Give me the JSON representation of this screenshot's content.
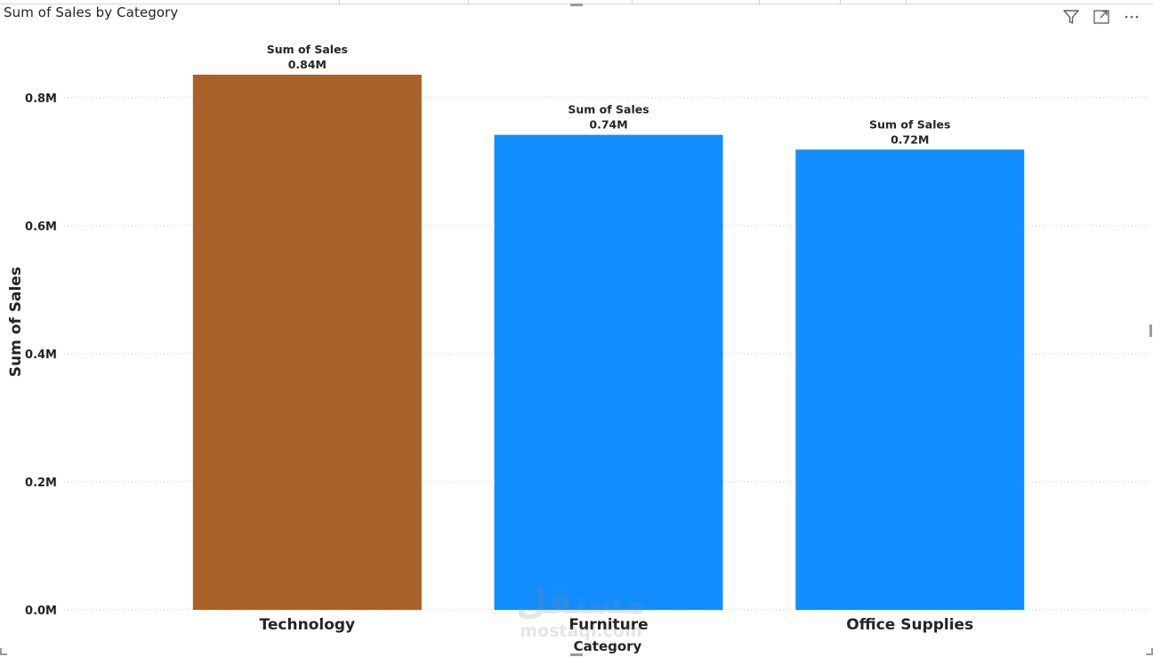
{
  "visual": {
    "title": "Sum of Sales by Category"
  },
  "header_icons": [
    {
      "name": "filter-icon"
    },
    {
      "name": "focus-mode-icon"
    },
    {
      "name": "more-options-icon"
    }
  ],
  "watermark": {
    "arabic": "مستقل",
    "latin": "mostaql.com"
  },
  "chart_data": {
    "type": "bar",
    "title": "Sum of Sales by Category",
    "xlabel": "Category",
    "ylabel": "Sum of Sales",
    "categories": [
      "Technology",
      "Furniture",
      "Office Supplies"
    ],
    "series": [
      {
        "values": [
          836000,
          742000,
          719000
        ],
        "data_labels": [
          "0.84M",
          "0.74M",
          "0.72M"
        ],
        "data_label_title": "Sum of Sales",
        "colors": [
          "#A86129",
          "#118DFF",
          "#118DFF"
        ]
      }
    ],
    "ylim": [
      0,
      836000
    ],
    "yticks": [
      0,
      200000,
      400000,
      600000,
      800000
    ],
    "ytick_labels": [
      "0.0M",
      "0.2M",
      "0.4M",
      "0.6M",
      "0.8M"
    ],
    "grid": true,
    "legend": "none"
  }
}
